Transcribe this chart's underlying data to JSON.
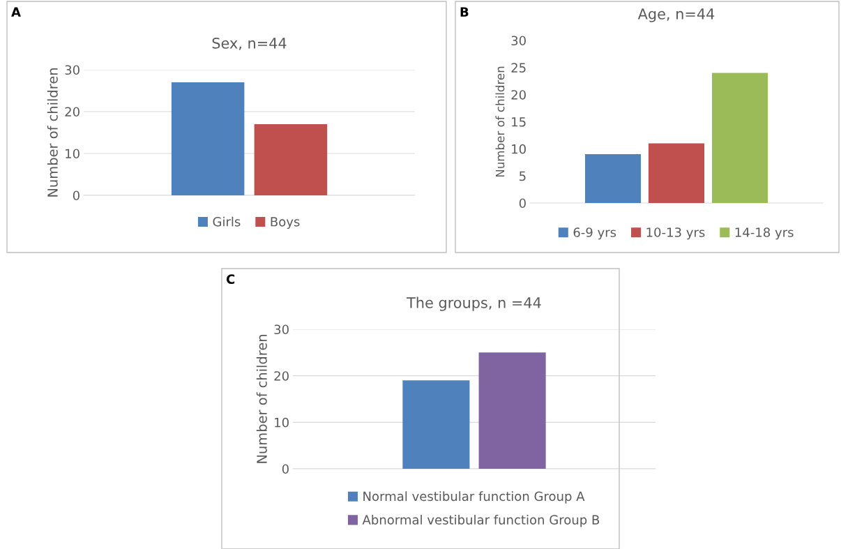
{
  "chart_data": [
    {
      "type": "bar",
      "title": "Sex, n=44",
      "ylabel": "Number of children",
      "annotations": [
        "A"
      ],
      "categories": [
        null
      ],
      "ylim": [
        0,
        30
      ],
      "yticks": [
        0,
        10,
        20,
        30
      ],
      "grid": "y",
      "legend": "bottom",
      "tick_labels": "y",
      "series": [
        {
          "name": "Girls",
          "color": "#4f81bd",
          "values": [
            27
          ]
        },
        {
          "name": "Boys",
          "color": "#c0504d",
          "values": [
            17
          ]
        }
      ]
    },
    {
      "type": "bar",
      "title": "Age, n=44",
      "ylabel": "Number of children",
      "annotations": [
        "B"
      ],
      "categories": [
        null
      ],
      "ylim": [
        0,
        30
      ],
      "yticks": [
        0,
        5,
        10,
        15,
        20,
        25,
        30
      ],
      "grid": false,
      "legend": "bottom",
      "tick_labels": "y",
      "series": [
        {
          "name": "6-9 yrs",
          "color": "#4f81bd",
          "values": [
            9
          ]
        },
        {
          "name": "10-13 yrs",
          "color": "#c0504d",
          "values": [
            11
          ]
        },
        {
          "name": "14-18 yrs",
          "color": "#9bbb59",
          "values": [
            24
          ]
        }
      ]
    },
    {
      "type": "bar",
      "title": "The groups, n =44",
      "ylabel": "Number of children",
      "annotations": [
        "C"
      ],
      "categories": [
        null
      ],
      "ylim": [
        0,
        30
      ],
      "yticks": [
        0,
        10,
        20,
        30
      ],
      "grid": "y",
      "legend": "bottom",
      "tick_labels": "y",
      "series": [
        {
          "name": "Normal vestibular function Group A",
          "color": "#4f81bd",
          "values": [
            19
          ]
        },
        {
          "name": "Abnormal vestibular function Group B",
          "color": "#8064a2",
          "values": [
            25
          ]
        }
      ]
    }
  ]
}
